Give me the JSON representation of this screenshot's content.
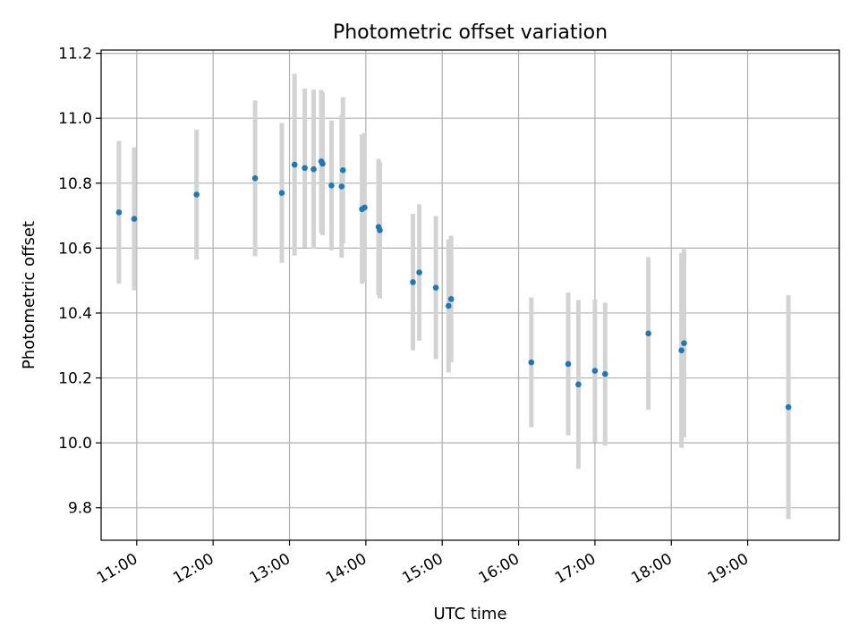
{
  "chart_data": {
    "type": "scatter",
    "title": "Photometric offset variation",
    "xlabel": "UTC time",
    "ylabel": "Photometric offset",
    "xlim": [
      "10:32",
      "20:12"
    ],
    "ylim": [
      9.7,
      11.21
    ],
    "grid": true,
    "x_ticks": [
      "11:00",
      "12:00",
      "13:00",
      "14:00",
      "15:00",
      "16:00",
      "17:00",
      "18:00",
      "19:00"
    ],
    "y_ticks": [
      9.8,
      10.0,
      10.2,
      10.4,
      10.6,
      10.8,
      11.0,
      11.2
    ],
    "y_tick_labels": [
      "9.8",
      "10.0",
      "10.2",
      "10.4",
      "10.6",
      "10.8",
      "11.0",
      "11.2"
    ],
    "point_color": "#1f77b4",
    "errorbar_color": "#d3d3d3",
    "points": [
      {
        "x": "10:46",
        "y": 10.71,
        "err": 0.22
      },
      {
        "x": "10:58",
        "y": 10.69,
        "err": 0.22
      },
      {
        "x": "11:47",
        "y": 10.765,
        "err": 0.2
      },
      {
        "x": "12:33",
        "y": 10.815,
        "err": 0.24
      },
      {
        "x": "12:54",
        "y": 10.77,
        "err": 0.215
      },
      {
        "x": "13:04",
        "y": 10.857,
        "err": 0.28
      },
      {
        "x": "13:12",
        "y": 10.847,
        "err": 0.245
      },
      {
        "x": "13:19",
        "y": 10.843,
        "err": 0.245
      },
      {
        "x": "13:25",
        "y": 10.867,
        "err": 0.22
      },
      {
        "x": "13:26",
        "y": 10.86,
        "err": 0.22
      },
      {
        "x": "13:33",
        "y": 10.793,
        "err": 0.2
      },
      {
        "x": "13:41",
        "y": 10.79,
        "err": 0.22
      },
      {
        "x": "13:42",
        "y": 10.84,
        "err": 0.225
      },
      {
        "x": "13:57",
        "y": 10.72,
        "err": 0.23
      },
      {
        "x": "13:59",
        "y": 10.725,
        "err": 0.23
      },
      {
        "x": "14:10",
        "y": 10.665,
        "err": 0.21
      },
      {
        "x": "14:11",
        "y": 10.655,
        "err": 0.21
      },
      {
        "x": "14:37",
        "y": 10.495,
        "err": 0.21
      },
      {
        "x": "14:42",
        "y": 10.525,
        "err": 0.21
      },
      {
        "x": "14:55",
        "y": 10.478,
        "err": 0.22
      },
      {
        "x": "15:05",
        "y": 10.422,
        "err": 0.205
      },
      {
        "x": "15:07",
        "y": 10.443,
        "err": 0.195
      },
      {
        "x": "16:10",
        "y": 10.248,
        "err": 0.2
      },
      {
        "x": "16:39",
        "y": 10.243,
        "err": 0.22
      },
      {
        "x": "16:47",
        "y": 10.18,
        "err": 0.26
      },
      {
        "x": "17:00",
        "y": 10.222,
        "err": 0.22
      },
      {
        "x": "17:08",
        "y": 10.212,
        "err": 0.22
      },
      {
        "x": "17:42",
        "y": 10.337,
        "err": 0.235
      },
      {
        "x": "18:08",
        "y": 10.285,
        "err": 0.3
      },
      {
        "x": "18:10",
        "y": 10.307,
        "err": 0.29
      },
      {
        "x": "19:32",
        "y": 10.11,
        "err": 0.345
      }
    ]
  }
}
